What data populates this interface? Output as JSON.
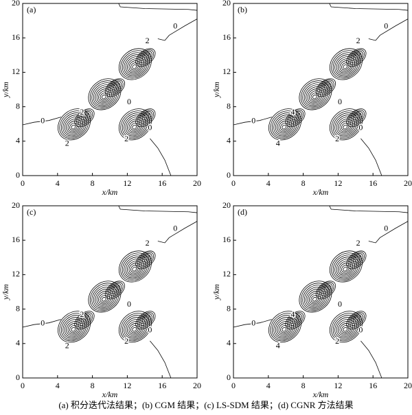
{
  "caption": "(a) 积分迭代法结果；(b) CGM 结果；(c) LS-SDM 结果；(d) CGNR 方法结果",
  "chart_data": [
    {
      "type": "contour",
      "panel_label": "(a)",
      "xlabel": "x/km",
      "ylabel": "y/km",
      "xlim": [
        0,
        20
      ],
      "ylim": [
        0,
        20
      ],
      "xticks": [
        0,
        4,
        8,
        12,
        16,
        20
      ],
      "yticks": [
        0,
        4,
        8,
        12,
        16,
        20
      ],
      "contour_labels": [
        "0",
        "0",
        "2",
        "2",
        "0",
        "0",
        "2",
        "2"
      ]
    },
    {
      "type": "contour",
      "panel_label": "(b)",
      "xlabel": "x/km",
      "ylabel": "y/km",
      "xlim": [
        0,
        20
      ],
      "ylim": [
        0,
        20
      ],
      "xticks": [
        0,
        4,
        8,
        12,
        16,
        20
      ],
      "yticks": [
        0,
        4,
        8,
        12,
        16,
        20
      ],
      "contour_labels": [
        "0",
        "0",
        "2",
        "4",
        "0",
        "0",
        "2",
        "4"
      ]
    },
    {
      "type": "contour",
      "panel_label": "(c)",
      "xlabel": "x/km",
      "ylabel": "y/km",
      "xlim": [
        0,
        20
      ],
      "ylim": [
        0,
        20
      ],
      "xticks": [
        0,
        4,
        8,
        12,
        16,
        20
      ],
      "yticks": [
        0,
        4,
        8,
        12,
        16,
        20
      ],
      "contour_labels": [
        "0",
        "0",
        "2",
        "2",
        "0",
        "0",
        "2",
        "2"
      ]
    },
    {
      "type": "contour",
      "panel_label": "(d)",
      "xlabel": "x/km",
      "ylabel": "y/km",
      "xlim": [
        0,
        20
      ],
      "ylim": [
        0,
        20
      ],
      "xticks": [
        0,
        4,
        8,
        12,
        16,
        20
      ],
      "yticks": [
        0,
        4,
        8,
        12,
        16,
        20
      ],
      "contour_labels": [
        "0",
        "0",
        "2",
        "4",
        "0",
        "0",
        "2",
        "4"
      ]
    }
  ]
}
